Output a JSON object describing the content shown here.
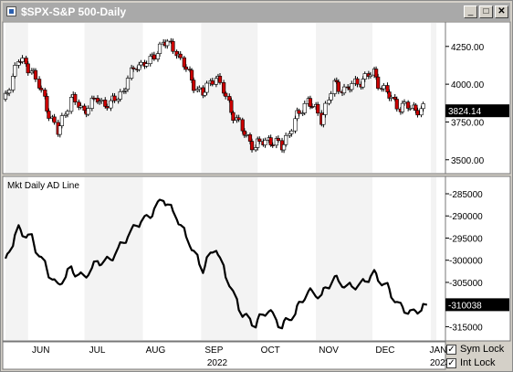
{
  "window": {
    "title": "$SPX-S&P 500-Daily",
    "buttons": {
      "minimize": "_",
      "maximize": "□",
      "close": "✕"
    }
  },
  "panels": {
    "indicator_label": "Mkt Daily AD Line"
  },
  "controls": {
    "sym_lock": {
      "label": "Sym Lock",
      "checked": true,
      "mark": "✓"
    },
    "int_lock": {
      "label": "Int Lock",
      "checked": true,
      "mark": "✓"
    }
  },
  "colors": {
    "up_candle": "#ffffff",
    "down_candle": "#cc0000",
    "line": "#000000",
    "value_tag": "#000000",
    "shade_light": "#f3f3f3"
  },
  "chart_data": [
    {
      "type": "candlestick",
      "title": "$SPX-S&P 500-Daily",
      "x_ticks": [
        "JUN",
        "JUL",
        "AUG",
        "SEP",
        "OCT",
        "NOV",
        "DEC",
        "JAN"
      ],
      "x_year_label": "2022",
      "x_year_label_next": "2023",
      "x_range": [
        "2022-05-20",
        "2023-01-03"
      ],
      "y_ticks": [
        4250,
        4000,
        3750,
        3500
      ],
      "y_tick_labels": [
        "4250.00",
        "4000.00",
        "3750.00",
        "3500.00"
      ],
      "ylim": [
        3420,
        4400
      ],
      "last_value_label": "3824.14",
      "last_value": 3824.14,
      "series_close_weekly": [
        {
          "date": "2022-05-20",
          "close": 3901
        },
        {
          "date": "2022-05-27",
          "close": 4158
        },
        {
          "date": "2022-06-03",
          "close": 4108
        },
        {
          "date": "2022-06-10",
          "close": 3900
        },
        {
          "date": "2022-06-17",
          "close": 3675
        },
        {
          "date": "2022-06-24",
          "close": 3911
        },
        {
          "date": "2022-07-01",
          "close": 3825
        },
        {
          "date": "2022-07-08",
          "close": 3899
        },
        {
          "date": "2022-07-15",
          "close": 3863
        },
        {
          "date": "2022-07-22",
          "close": 3962
        },
        {
          "date": "2022-07-29",
          "close": 4130
        },
        {
          "date": "2022-08-05",
          "close": 4145
        },
        {
          "date": "2022-08-12",
          "close": 4280
        },
        {
          "date": "2022-08-19",
          "close": 4228
        },
        {
          "date": "2022-08-26",
          "close": 4057
        },
        {
          "date": "2022-09-02",
          "close": 3924
        },
        {
          "date": "2022-09-09",
          "close": 4067
        },
        {
          "date": "2022-09-16",
          "close": 3873
        },
        {
          "date": "2022-09-23",
          "close": 3693
        },
        {
          "date": "2022-09-30",
          "close": 3585
        },
        {
          "date": "2022-10-07",
          "close": 3639
        },
        {
          "date": "2022-10-14",
          "close": 3583
        },
        {
          "date": "2022-10-21",
          "close": 3752
        },
        {
          "date": "2022-10-28",
          "close": 3901
        },
        {
          "date": "2022-11-04",
          "close": 3770
        },
        {
          "date": "2022-11-11",
          "close": 3992
        },
        {
          "date": "2022-11-18",
          "close": 3965
        },
        {
          "date": "2022-11-25",
          "close": 4026
        },
        {
          "date": "2022-12-02",
          "close": 4072
        },
        {
          "date": "2022-12-09",
          "close": 3934
        },
        {
          "date": "2022-12-16",
          "close": 3852
        },
        {
          "date": "2022-12-23",
          "close": 3845
        },
        {
          "date": "2022-12-30",
          "close": 3824
        }
      ]
    },
    {
      "type": "line",
      "title": "Mkt Daily AD Line",
      "y_ticks": [
        -285000,
        -290000,
        -295000,
        -300000,
        -305000,
        -310000,
        -315000
      ],
      "y_tick_labels": [
        "-285000",
        "-290000",
        "-295000",
        "-300000",
        "-305000",
        "-310000",
        "-315000"
      ],
      "ylim": [
        -317800,
        -281700
      ],
      "last_value_label": "-310038",
      "last_value": -310038,
      "series": [
        {
          "date": "2022-05-20",
          "value": -300500
        },
        {
          "date": "2022-05-27",
          "value": -293000
        },
        {
          "date": "2022-06-03",
          "value": -295000
        },
        {
          "date": "2022-06-10",
          "value": -301000
        },
        {
          "date": "2022-06-17",
          "value": -306000
        },
        {
          "date": "2022-06-24",
          "value": -302000
        },
        {
          "date": "2022-07-01",
          "value": -304000
        },
        {
          "date": "2022-07-08",
          "value": -300500
        },
        {
          "date": "2022-07-15",
          "value": -300000
        },
        {
          "date": "2022-07-22",
          "value": -296000
        },
        {
          "date": "2022-07-29",
          "value": -292000
        },
        {
          "date": "2022-08-05",
          "value": -290000
        },
        {
          "date": "2022-08-12",
          "value": -286000
        },
        {
          "date": "2022-08-19",
          "value": -290000
        },
        {
          "date": "2022-08-26",
          "value": -296000
        },
        {
          "date": "2022-09-02",
          "value": -302000
        },
        {
          "date": "2022-09-09",
          "value": -297000
        },
        {
          "date": "2022-09-16",
          "value": -305000
        },
        {
          "date": "2022-09-23",
          "value": -312000
        },
        {
          "date": "2022-09-30",
          "value": -314500
        },
        {
          "date": "2022-10-07",
          "value": -311000
        },
        {
          "date": "2022-10-14",
          "value": -315000
        },
        {
          "date": "2022-10-21",
          "value": -312000
        },
        {
          "date": "2022-10-28",
          "value": -307000
        },
        {
          "date": "2022-11-04",
          "value": -308000
        },
        {
          "date": "2022-11-11",
          "value": -304000
        },
        {
          "date": "2022-11-18",
          "value": -306000
        },
        {
          "date": "2022-11-25",
          "value": -305500
        },
        {
          "date": "2022-12-02",
          "value": -303000
        },
        {
          "date": "2022-12-09",
          "value": -306000
        },
        {
          "date": "2022-12-16",
          "value": -310500
        },
        {
          "date": "2022-12-23",
          "value": -312000
        },
        {
          "date": "2022-12-30",
          "value": -310038
        }
      ]
    }
  ]
}
